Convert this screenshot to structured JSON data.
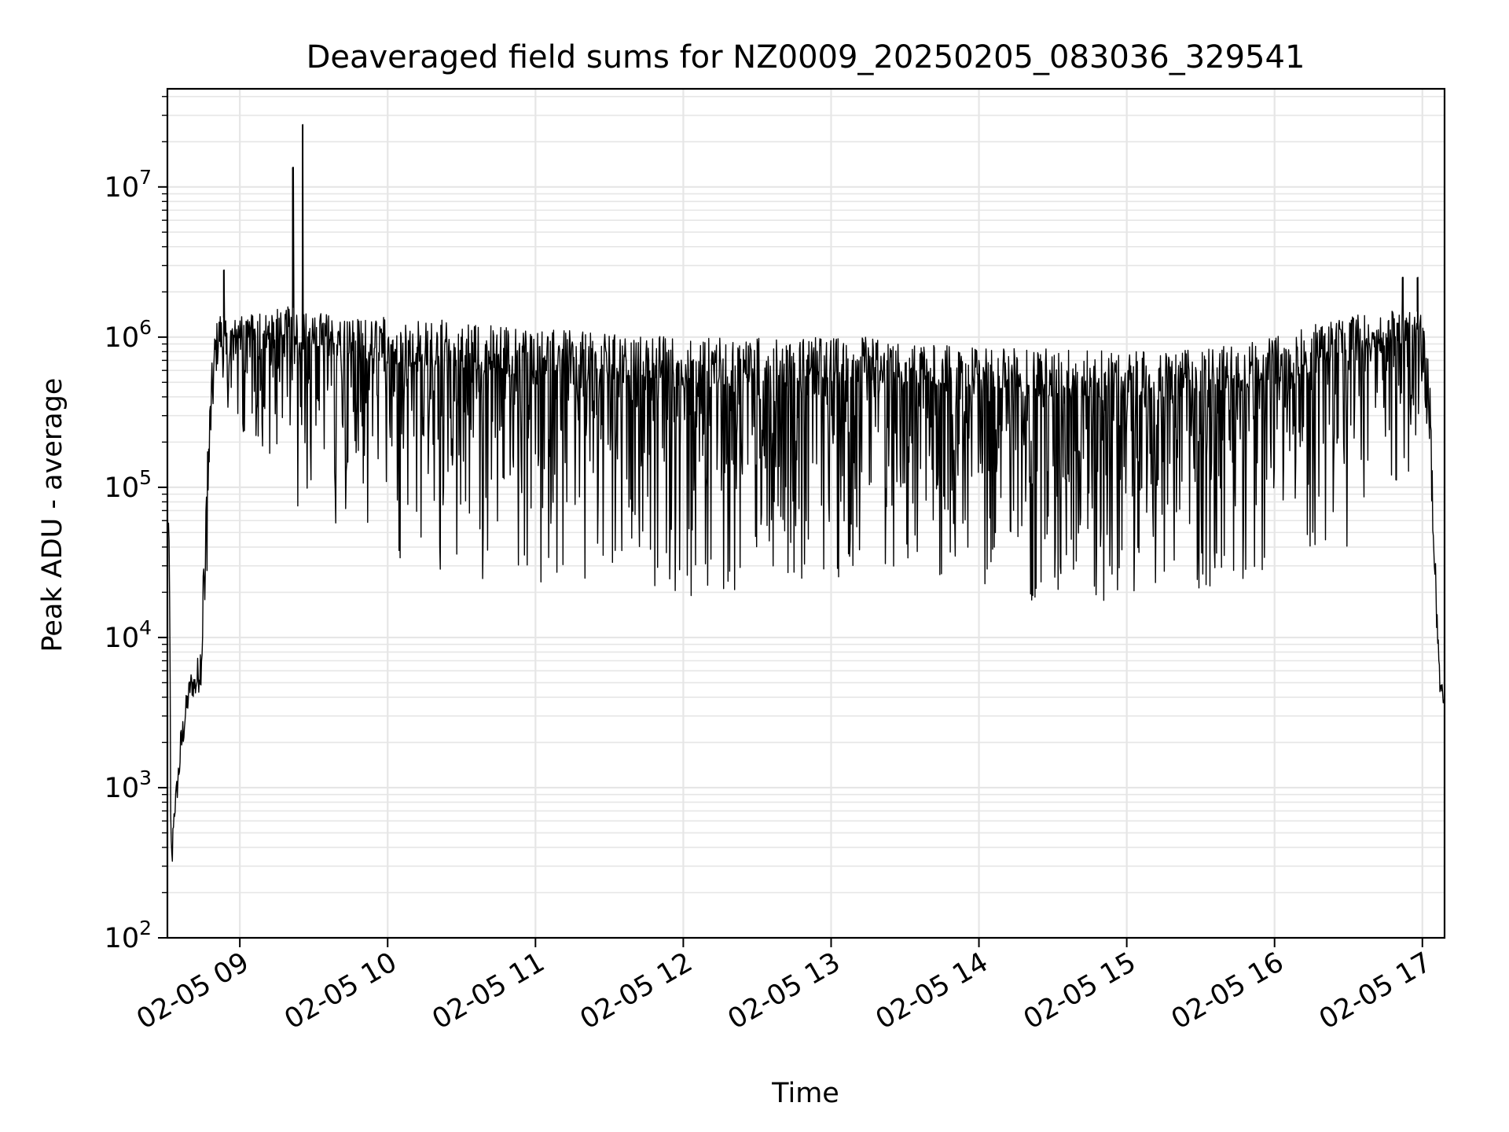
{
  "chart_data": {
    "type": "line",
    "title": "Deaveraged field sums for NZ0009_20250205_083036_329541",
    "xlabel": "Time",
    "ylabel": "Peak ADU - average",
    "yscale": "log",
    "ylim": [
      100,
      45000000
    ],
    "xlim": [
      "02-05 08:30:36",
      "02-05 17:09:00"
    ],
    "grid": true,
    "x_ticks": [
      "02-05 09",
      "02-05 10",
      "02-05 11",
      "02-05 12",
      "02-05 13",
      "02-05 14",
      "02-05 15",
      "02-05 16",
      "02-05 17"
    ],
    "y_ticks": [
      {
        "base": "10",
        "exp": "2",
        "value": 100
      },
      {
        "base": "10",
        "exp": "3",
        "value": 1000
      },
      {
        "base": "10",
        "exp": "4",
        "value": 10000
      },
      {
        "base": "10",
        "exp": "5",
        "value": 100000
      },
      {
        "base": "10",
        "exp": "6",
        "value": 1000000
      },
      {
        "base": "10",
        "exp": "7",
        "value": 10000000
      }
    ],
    "line_color": "#000000",
    "grid_color": "#e6e6e6",
    "series": [
      {
        "x": [
          "08:30:36",
          "08:31:00",
          "08:31:30",
          "08:32:00",
          "08:32:30",
          "08:33:00",
          "08:34:00",
          "08:35:00",
          "08:36:00",
          "08:38:00",
          "08:40:00",
          "08:42:00",
          "08:44:00",
          "08:46:00",
          "08:47:00",
          "08:48:00",
          "08:50:00",
          "08:52:00",
          "08:54:00",
          "08:56:00",
          "08:58:00",
          "09:00:00",
          "09:10:00",
          "09:20:00",
          "09:25:00",
          "09:30:00",
          "09:40:00",
          "09:50:00",
          "10:00:00",
          "10:15:00",
          "10:30:00",
          "10:45:00",
          "11:00:00",
          "11:15:00",
          "11:30:00",
          "11:45:00",
          "12:00:00",
          "12:15:00",
          "12:30:00",
          "12:45:00",
          "13:00:00",
          "13:15:00",
          "13:30:00",
          "13:45:00",
          "14:00:00",
          "14:15:00",
          "14:30:00",
          "14:45:00",
          "15:00:00",
          "15:15:00",
          "15:30:00",
          "15:45:00",
          "16:00:00",
          "16:15:00",
          "16:30:00",
          "16:45:00",
          "16:55:00",
          "17:00:00",
          "17:03:00",
          "17:05:00",
          "17:07:00",
          "17:09:00"
        ],
        "lower": [
          30000,
          60000,
          5000,
          180,
          230,
          500,
          700,
          900,
          1300,
          2500,
          4000,
          3800,
          4500,
          8000,
          40000,
          150000,
          500000,
          800000,
          400000,
          300000,
          300000,
          200000,
          150000,
          100000,
          60000,
          70000,
          50000,
          40000,
          35000,
          30000,
          25000,
          22000,
          22000,
          22000,
          22000,
          22000,
          18000,
          20000,
          22000,
          24000,
          25000,
          25000,
          28000,
          25000,
          22000,
          20000,
          15000,
          15000,
          18000,
          15000,
          20000,
          22000,
          25000,
          40000,
          40000,
          80000,
          100000,
          300000,
          200000,
          15000,
          4000,
          3500
        ],
        "upper": [
          70000,
          70000,
          30000,
          600,
          400,
          700,
          1000,
          1500,
          2500,
          4000,
          6000,
          6000,
          10000,
          60000,
          200000,
          500000,
          1200000,
          1500000,
          1300000,
          1200000,
          1300000,
          1400000,
          1500000,
          1600000,
          1500000,
          1500000,
          1400000,
          1300000,
          1400000,
          1300000,
          1300000,
          1200000,
          1150000,
          1100000,
          1050000,
          1050000,
          1000000,
          1000000,
          1000000,
          1000000,
          1000000,
          1000000,
          900000,
          900000,
          850000,
          850000,
          850000,
          850000,
          800000,
          800000,
          850000,
          900000,
          1000000,
          1200000,
          1400000,
          1500000,
          1600000,
          1400000,
          600000,
          50000,
          6000,
          4000
        ]
      }
    ],
    "spikes": [
      {
        "x": "08:53:30",
        "y": 2800000
      },
      {
        "x": "09:21:30",
        "y": 13500000
      },
      {
        "x": "09:25:30",
        "y": 26000000
      },
      {
        "x": "16:52:00",
        "y": 2500000
      },
      {
        "x": "16:58:00",
        "y": 2500000
      }
    ]
  }
}
